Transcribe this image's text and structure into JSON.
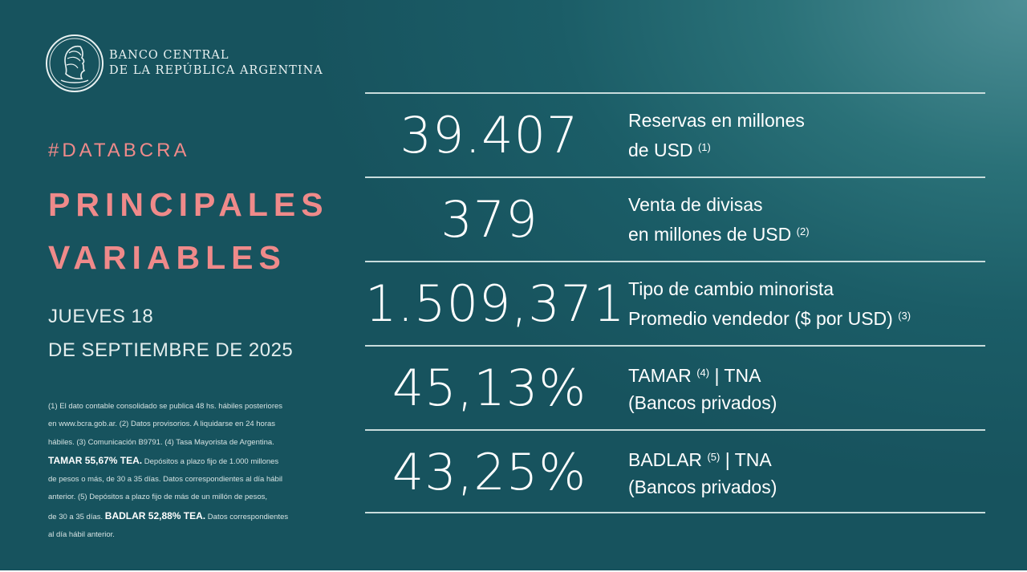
{
  "logo": {
    "line1": "BANCO CENTRAL",
    "line2": "DE LA REPÚBLICA ARGENTINA"
  },
  "hashtag": "#DATABCRA",
  "title": {
    "line1": "PRINCIPALES",
    "line2": "VARIABLES"
  },
  "date": {
    "line1": "JUEVES 18",
    "line2": "DE SEPTIEMBRE DE 2025"
  },
  "notes": [
    "(1) El dato contable consolidado se publica 48 hs. hábiles posteriores",
    "en www.bcra.gob.ar. (2) Datos provisorios. A liquidarse en 24 horas",
    "hábiles. (3) Comunicación B9791. (4) Tasa Mayorista de Argentina.",
    "TAMAR 55,67% TEA.",
    " Depósitos a plazo fijo de 1.000 millones",
    "de pesos o más, de 30 a 35 días. Datos correspondientes al día hábil",
    "anterior. (5) Depósitos a plazo fijo de más de un millón de pesos,",
    "de 30 a 35 días. ",
    "BADLAR 52,88% TEA.",
    " Datos correspondientes",
    "al día hábil anterior."
  ],
  "indicators": [
    {
      "value": "39.407",
      "label_line1": "Reservas en millones",
      "label_line2": "de USD",
      "note": "(1)"
    },
    {
      "value": "379",
      "label_line1": "Venta de divisas",
      "label_line2": "en millones de USD",
      "note": "(2)"
    },
    {
      "value": "1.509,371",
      "label_line1": "Tipo de cambio minorista",
      "label_line2": "Promedio vendedor ($ por USD)",
      "note": "(3)"
    },
    {
      "value": "45,13%",
      "label_line1_a": "TAMAR",
      "note": "(4)",
      "label_line1_b": "| TNA",
      "label_line2": "(Bancos privados)"
    },
    {
      "value": "43,25%",
      "label_line1_a": "BADLAR",
      "note": "(5)",
      "label_line1_b": "| TNA",
      "label_line2": "(Bancos privados)"
    }
  ],
  "colors": {
    "accent": "#ef8a8a",
    "background": "#1b5d67",
    "rule": "#c8dcdc"
  }
}
